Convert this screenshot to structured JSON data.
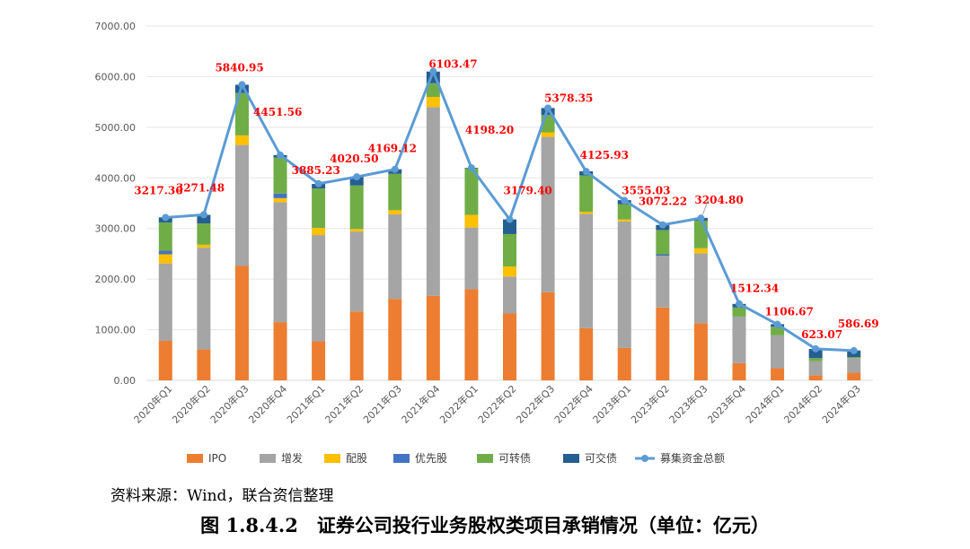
{
  "chart_data": {
    "type": "bar",
    "stacked": true,
    "categories": [
      "2020年Q1",
      "2020年Q2",
      "2020年Q3",
      "2020年Q4",
      "2021年Q1",
      "2021年Q2",
      "2021年Q3",
      "2021年Q4",
      "2022年Q1",
      "2022年Q2",
      "2022年Q3",
      "2022年Q4",
      "2023年Q1",
      "2023年Q2",
      "2023年Q3",
      "2023年Q4",
      "2024年Q1",
      "2024年Q2",
      "2024年Q3"
    ],
    "series": [
      {
        "name": "IPO",
        "color": "#ed7d31",
        "values": [
          780,
          610,
          2260,
          1150,
          770,
          1360,
          1610,
          1670,
          1800,
          1320,
          1740,
          1030,
          640,
          1440,
          1130,
          340,
          240,
          100,
          150
        ]
      },
      {
        "name": "增发",
        "color": "#a5a5a5",
        "values": [
          1530,
          2010,
          2390,
          2370,
          2100,
          1580,
          1670,
          3730,
          1220,
          730,
          3070,
          2260,
          2500,
          1020,
          1380,
          920,
          650,
          280,
          290
        ]
      },
      {
        "name": "配股",
        "color": "#ffc000",
        "values": [
          180,
          60,
          190,
          80,
          140,
          50,
          80,
          200,
          250,
          200,
          90,
          40,
          40,
          0,
          100,
          0,
          0,
          0,
          0
        ]
      },
      {
        "name": "优先股",
        "color": "#4472c4",
        "values": [
          70,
          0,
          0,
          90,
          0,
          0,
          0,
          0,
          0,
          0,
          0,
          0,
          0,
          30,
          0,
          0,
          0,
          0,
          0
        ]
      },
      {
        "name": "可转债",
        "color": "#70ad47",
        "values": [
          560,
          420,
          840,
          710,
          780,
          860,
          720,
          270,
          920,
          640,
          340,
          720,
          300,
          480,
          540,
          180,
          170,
          60,
          20
        ]
      },
      {
        "name": "可交债",
        "color": "#255e91",
        "values": [
          100,
          170,
          160,
          50,
          90,
          170,
          90,
          230,
          10,
          290,
          140,
          80,
          80,
          100,
          60,
          70,
          50,
          180,
          130
        ]
      }
    ],
    "line": {
      "name": "募集资金总额",
      "color": "#5b9bd5",
      "values": [
        3217.36,
        3271.48,
        5840.95,
        4451.56,
        3885.23,
        4020.5,
        4169.12,
        6103.47,
        4198.2,
        3179.4,
        5378.35,
        4125.93,
        3555.03,
        3072.22,
        3204.8,
        1512.34,
        1106.67,
        623.07,
        586.69
      ]
    },
    "data_labels": [
      "3217.36",
      "3271.48",
      "5840.95",
      "4451.56",
      "3885.23",
      "4020.50",
      "4169.12",
      "6103.47",
      "4198.20",
      "3179.40",
      "5378.35",
      "4125.93",
      "3555.03",
      "3072.22",
      "3204.80",
      "1512.34",
      "1106.67",
      "623.07",
      "586.69"
    ],
    "yticks": [
      "0.00",
      "1000.00",
      "2000.00",
      "3000.00",
      "4000.00",
      "5000.00",
      "6000.00",
      "7000.00"
    ],
    "ylim": [
      0,
      7000
    ],
    "grid": true,
    "legend_position": "bottom",
    "source": "资料来源：Wind，联合资信整理",
    "title": "图 1.8.4.2　证券公司投行业务股权类项目承销情况（单位：亿元）"
  }
}
